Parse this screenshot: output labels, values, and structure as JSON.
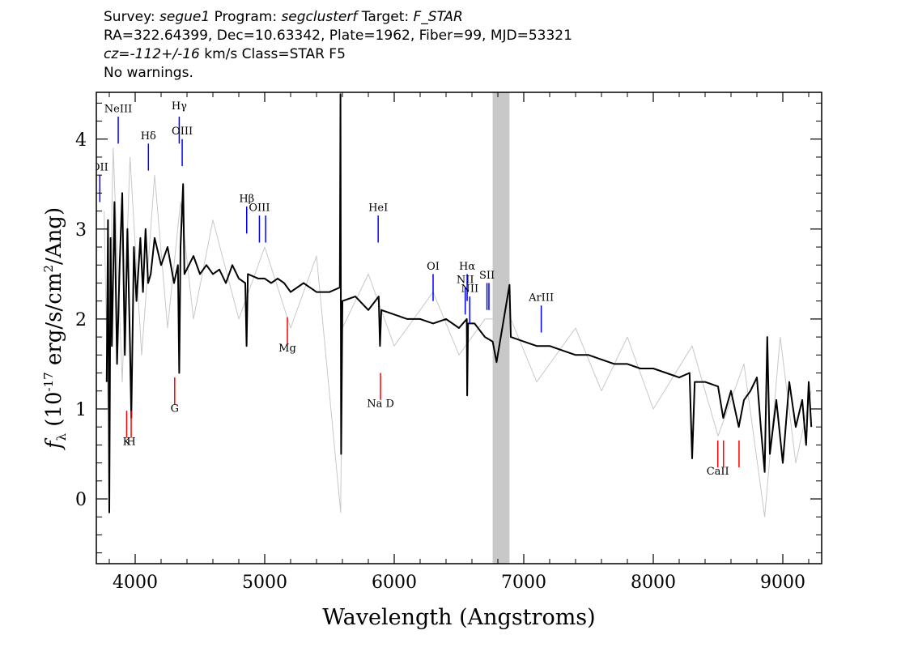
{
  "header": {
    "line1": {
      "k1": "Survey: ",
      "v1": "segue1",
      "k2": " Program: ",
      "v2": "segclusterf",
      "k3": " Target: ",
      "v3": "F_STAR"
    },
    "line2": "RA=322.64399, Dec=10.63342, Plate=1962, Fiber=99, MJD=53321",
    "line3": {
      "v1": "cz=-112+/-16",
      "rest": " km/s Class=STAR F5"
    },
    "line4": "No warnings."
  },
  "chart_data": {
    "type": "line",
    "xlabel": "Wavelength (Angstroms)",
    "ylabel_parts": {
      "f": "f",
      "sub": "λ",
      "pre": " (10",
      "exp1": "-17",
      "mid": " erg/s/cm",
      "exp2": "2",
      "post": "/Ang)"
    },
    "xlim": [
      3700,
      9300
    ],
    "ylim": [
      -0.72,
      4.52
    ],
    "xticks": [
      4000,
      5000,
      6000,
      7000,
      8000,
      9000
    ],
    "yticks": [
      0,
      1,
      2,
      3,
      4
    ],
    "masked_region": [
      6760,
      6890
    ],
    "series": [
      {
        "role": "flux",
        "color": "#000000",
        "points": [
          [
            3780,
            1.3
          ],
          [
            3790,
            3.1
          ],
          [
            3800,
            -0.15
          ],
          [
            3810,
            2.9
          ],
          [
            3820,
            1.7
          ],
          [
            3840,
            3.3
          ],
          [
            3860,
            1.5
          ],
          [
            3880,
            2.6
          ],
          [
            3900,
            3.4
          ],
          [
            3920,
            1.6
          ],
          [
            3940,
            3.0
          ],
          [
            3960,
            1.7
          ],
          [
            3970,
            0.9
          ],
          [
            3990,
            2.8
          ],
          [
            4010,
            2.2
          ],
          [
            4040,
            2.9
          ],
          [
            4060,
            2.3
          ],
          [
            4080,
            3.0
          ],
          [
            4100,
            2.4
          ],
          [
            4120,
            2.5
          ],
          [
            4150,
            2.9
          ],
          [
            4200,
            2.6
          ],
          [
            4250,
            2.8
          ],
          [
            4300,
            2.4
          ],
          [
            4330,
            2.6
          ],
          [
            4340,
            1.4
          ],
          [
            4350,
            2.8
          ],
          [
            4370,
            3.5
          ],
          [
            4380,
            2.5
          ],
          [
            4450,
            2.7
          ],
          [
            4500,
            2.5
          ],
          [
            4550,
            2.6
          ],
          [
            4600,
            2.5
          ],
          [
            4650,
            2.55
          ],
          [
            4700,
            2.4
          ],
          [
            4750,
            2.6
          ],
          [
            4800,
            2.45
          ],
          [
            4850,
            2.4
          ],
          [
            4860,
            1.7
          ],
          [
            4870,
            2.5
          ],
          [
            4950,
            2.45
          ],
          [
            5000,
            2.45
          ],
          [
            5050,
            2.4
          ],
          [
            5100,
            2.45
          ],
          [
            5150,
            2.4
          ],
          [
            5200,
            2.3
          ],
          [
            5300,
            2.4
          ],
          [
            5400,
            2.3
          ],
          [
            5500,
            2.3
          ],
          [
            5580,
            2.35
          ],
          [
            5585,
            4.5
          ],
          [
            5590,
            0.5
          ],
          [
            5600,
            2.2
          ],
          [
            5700,
            2.25
          ],
          [
            5800,
            2.1
          ],
          [
            5880,
            2.25
          ],
          [
            5890,
            1.7
          ],
          [
            5900,
            2.1
          ],
          [
            6000,
            2.05
          ],
          [
            6100,
            2.0
          ],
          [
            6200,
            2.0
          ],
          [
            6300,
            1.95
          ],
          [
            6400,
            2.0
          ],
          [
            6500,
            1.9
          ],
          [
            6560,
            2.0
          ],
          [
            6563,
            1.15
          ],
          [
            6570,
            1.95
          ],
          [
            6620,
            1.95
          ],
          [
            6700,
            1.8
          ],
          [
            6760,
            1.75
          ],
          [
            6790,
            1.52
          ],
          [
            6890,
            2.38
          ],
          [
            6900,
            1.8
          ],
          [
            7000,
            1.75
          ],
          [
            7100,
            1.7
          ],
          [
            7200,
            1.7
          ],
          [
            7300,
            1.65
          ],
          [
            7400,
            1.6
          ],
          [
            7500,
            1.6
          ],
          [
            7600,
            1.55
          ],
          [
            7700,
            1.5
          ],
          [
            7800,
            1.5
          ],
          [
            7900,
            1.45
          ],
          [
            8000,
            1.45
          ],
          [
            8100,
            1.4
          ],
          [
            8200,
            1.35
          ],
          [
            8280,
            1.4
          ],
          [
            8300,
            0.45
          ],
          [
            8320,
            1.3
          ],
          [
            8400,
            1.3
          ],
          [
            8500,
            1.25
          ],
          [
            8540,
            0.9
          ],
          [
            8600,
            1.2
          ],
          [
            8660,
            0.8
          ],
          [
            8700,
            1.1
          ],
          [
            8750,
            1.2
          ],
          [
            8800,
            1.35
          ],
          [
            8830,
            0.8
          ],
          [
            8860,
            0.3
          ],
          [
            8880,
            1.8
          ],
          [
            8900,
            0.5
          ],
          [
            8950,
            1.1
          ],
          [
            9000,
            0.4
          ],
          [
            9050,
            1.3
          ],
          [
            9100,
            0.8
          ],
          [
            9150,
            1.1
          ],
          [
            9180,
            0.6
          ],
          [
            9200,
            1.3
          ],
          [
            9220,
            0.8
          ]
        ]
      },
      {
        "role": "error",
        "color": "#c8c8c8",
        "points": [
          [
            3760,
            3.2
          ],
          [
            3790,
            1.0
          ],
          [
            3830,
            3.9
          ],
          [
            3900,
            1.3
          ],
          [
            3960,
            3.8
          ],
          [
            4050,
            1.6
          ],
          [
            4150,
            3.6
          ],
          [
            4250,
            1.9
          ],
          [
            4350,
            3.3
          ],
          [
            4450,
            2.0
          ],
          [
            4600,
            3.1
          ],
          [
            4800,
            2.0
          ],
          [
            5000,
            2.8
          ],
          [
            5200,
            1.9
          ],
          [
            5400,
            2.7
          ],
          [
            5586,
            -0.15
          ],
          [
            5600,
            1.9
          ],
          [
            5800,
            2.5
          ],
          [
            6000,
            1.7
          ],
          [
            6300,
            2.3
          ],
          [
            6500,
            1.6
          ],
          [
            6700,
            2.0
          ],
          [
            6900,
            2.0
          ],
          [
            7100,
            1.3
          ],
          [
            7400,
            1.9
          ],
          [
            7600,
            1.2
          ],
          [
            7800,
            1.8
          ],
          [
            8000,
            1.0
          ],
          [
            8300,
            1.7
          ],
          [
            8500,
            0.7
          ],
          [
            8700,
            1.5
          ],
          [
            8860,
            -0.2
          ],
          [
            8980,
            1.8
          ],
          [
            9100,
            0.4
          ],
          [
            9220,
            1.2
          ]
        ]
      }
    ],
    "lines": [
      {
        "label": "NeIII",
        "w": 3869,
        "color": "#0000ff",
        "y0": 3.95,
        "y1": 4.25,
        "label_y": 4.3
      },
      {
        "label": "Hδ",
        "w": 4102,
        "color": "#0000ff",
        "y0": 3.65,
        "y1": 3.95,
        "label_y": 4.0
      },
      {
        "label": "Hγ",
        "w": 4340,
        "color": "#0000ff",
        "y0": 3.95,
        "y1": 4.25,
        "label_y": 4.33
      },
      {
        "label": "OIII",
        "w": 4363,
        "color": "#0000ff",
        "y0": 3.7,
        "y1": 4.0,
        "label_y": 4.05
      },
      {
        "label": "Hβ",
        "w": 4861,
        "color": "#0000ff",
        "y0": 2.95,
        "y1": 3.25,
        "label_y": 3.3
      },
      {
        "label": "OIII",
        "w": 4959,
        "color": "#0000ff",
        "y0": 2.85,
        "y1": 3.15,
        "label_y": 3.2
      },
      {
        "label": "",
        "w": 5007,
        "color": "#0000ff",
        "y0": 2.85,
        "y1": 3.15,
        "label_y": 3.2
      },
      {
        "label": "HeI",
        "w": 5876,
        "color": "#0000ff",
        "y0": 2.85,
        "y1": 3.15,
        "label_y": 3.2
      },
      {
        "label": "OI",
        "w": 6300,
        "color": "#0000ff",
        "y0": 2.2,
        "y1": 2.5,
        "label_y": 2.55
      },
      {
        "label": "NII",
        "w": 6548,
        "color": "#0000ff",
        "y0": 2.05,
        "y1": 2.35,
        "label_y": 2.4
      },
      {
        "label": "Hα",
        "w": 6563,
        "color": "#0000ff",
        "y0": 2.2,
        "y1": 2.5,
        "label_y": 2.55
      },
      {
        "label": "NII",
        "w": 6583,
        "color": "#0000ff",
        "y0": 1.95,
        "y1": 2.25,
        "label_y": 2.3
      },
      {
        "label": "SII",
        "w": 6716,
        "color": "#0000ff",
        "y0": 2.1,
        "y1": 2.4,
        "label_y": 2.45
      },
      {
        "label": "",
        "w": 6731,
        "color": "#0000ff",
        "y0": 2.1,
        "y1": 2.4,
        "label_y": 2.45
      },
      {
        "label": "ArIII",
        "w": 7135,
        "color": "#0000ff",
        "y0": 1.85,
        "y1": 2.15,
        "label_y": 2.2
      },
      {
        "label": "OII",
        "w": 3727,
        "color": "#0000ff",
        "y0": 3.3,
        "y1": 3.6,
        "label_y": 3.65
      },
      {
        "label": "K",
        "w": 3934,
        "color": "#ff0000",
        "y0": 0.68,
        "y1": 0.98,
        "label_y": 0.6
      },
      {
        "label": "H",
        "w": 3969,
        "color": "#ff0000",
        "y0": 0.68,
        "y1": 0.98,
        "label_y": 0.6
      },
      {
        "label": "G",
        "w": 4305,
        "color": "#ff0000",
        "y0": 1.05,
        "y1": 1.35,
        "label_y": 0.97
      },
      {
        "label": "Mg",
        "w": 5175,
        "color": "#ff0000",
        "y0": 1.72,
        "y1": 2.02,
        "label_y": 1.64
      },
      {
        "label": "Na D",
        "w": 5894,
        "color": "#ff0000",
        "y0": 1.1,
        "y1": 1.4,
        "label_y": 1.02
      },
      {
        "label": "CaII",
        "w": 8498,
        "color": "#ff0000",
        "y0": 0.35,
        "y1": 0.65,
        "label_y": 0.27
      },
      {
        "label": "",
        "w": 8542,
        "color": "#ff0000",
        "y0": 0.35,
        "y1": 0.65,
        "label_y": 0.27
      },
      {
        "label": "",
        "w": 8662,
        "color": "#ff0000",
        "y0": 0.35,
        "y1": 0.65,
        "label_y": 0.27
      }
    ]
  }
}
